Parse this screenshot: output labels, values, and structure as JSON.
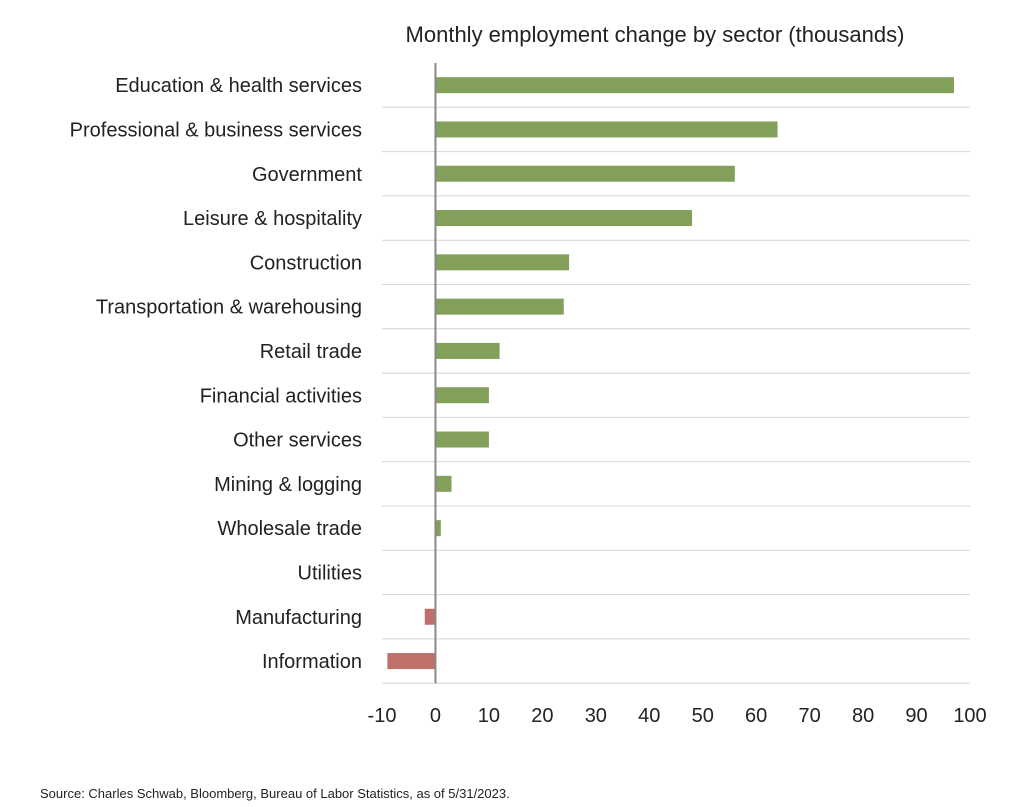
{
  "chart_data": {
    "type": "bar",
    "orientation": "horizontal",
    "title": "Monthly employment change by sector (thousands)",
    "xlabel": "",
    "ylabel": "",
    "categories": [
      "Education & health services",
      "Professional & business services",
      "Government",
      "Leisure & hospitality",
      "Construction",
      "Transportation & warehousing",
      "Retail trade",
      "Financial activities",
      "Other services",
      "Mining & logging",
      "Wholesale trade",
      "Utilities",
      "Manufacturing",
      "Information"
    ],
    "values": [
      97,
      64,
      56,
      48,
      25,
      24,
      12,
      10,
      10,
      3,
      1,
      0,
      -2,
      -9
    ],
    "xlim": [
      -10,
      100
    ],
    "xticks": [
      -10,
      0,
      10,
      20,
      30,
      40,
      50,
      60,
      70,
      80,
      90,
      100
    ],
    "grid": "horizontal lines between categories",
    "legend": "none",
    "colors": {
      "positive": "#82A05A",
      "negative": "#C0706A",
      "axis": "#888888",
      "grid": "#d4d4d4"
    }
  },
  "source": "Source: Charles Schwab, Bloomberg, Bureau of Labor Statistics, as of 5/31/2023."
}
